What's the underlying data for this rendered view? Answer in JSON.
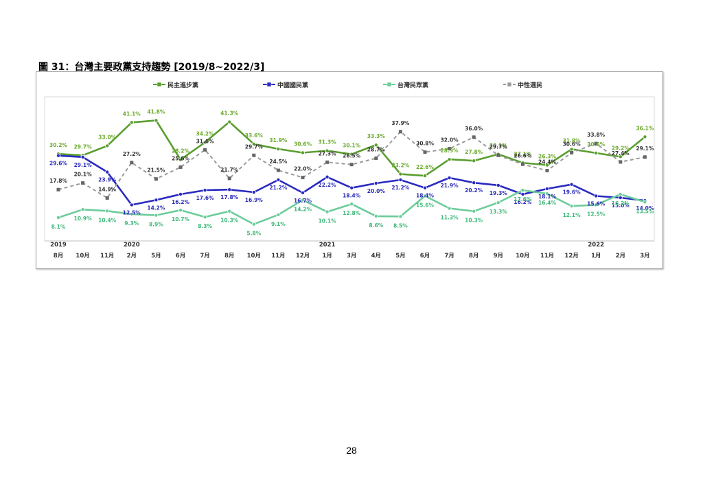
{
  "figure_title": "圖 31：台灣主要政黨支持趨勢 [2019/8~2022/3]",
  "page_number": "28",
  "chart_data": {
    "type": "line",
    "categories": [
      "8月",
      "10月",
      "11月",
      "2月",
      "5月",
      "6月",
      "7月",
      "8月",
      "10月",
      "11月",
      "12月",
      "1月",
      "3月",
      "4月",
      "5月",
      "6月",
      "7月",
      "8月",
      "9月",
      "10月",
      "11月",
      "12月",
      "1月",
      "2月",
      "3月"
    ],
    "year_labels": [
      {
        "index": 0,
        "label": "2019"
      },
      {
        "index": 3,
        "label": "2020"
      },
      {
        "index": 11,
        "label": "2021"
      },
      {
        "index": 22,
        "label": "2022"
      }
    ],
    "ylim": [
      0,
      50
    ],
    "value_suffix": "%",
    "legend_position": "top",
    "series": [
      {
        "name": "民主進步黨",
        "color": "#5a9e2f",
        "label_color": "#6aaa2a",
        "style": "solid",
        "values": [
          30.2,
          29.7,
          33.0,
          41.1,
          41.8,
          28.2,
          34.2,
          41.3,
          33.6,
          31.9,
          30.6,
          31.3,
          30.1,
          33.3,
          23.2,
          22.6,
          28.3,
          27.8,
          30.1,
          27.1,
          26.3,
          31.8,
          30.5,
          29.2,
          36.1
        ]
      },
      {
        "name": "中國國民黨",
        "color": "#2a2ac0",
        "label_color": "#2a2ab8",
        "style": "solid",
        "values": [
          29.6,
          29.1,
          23.9,
          12.5,
          14.2,
          16.2,
          17.6,
          17.8,
          16.9,
          21.2,
          16.7,
          22.2,
          18.4,
          20.0,
          21.2,
          18.4,
          21.9,
          20.2,
          19.3,
          16.2,
          18.1,
          19.6,
          15.6,
          15.0,
          14.0
        ]
      },
      {
        "name": "台灣民眾黨",
        "color": "#6ccc9a",
        "label_color": "#3db878",
        "style": "solid",
        "values": [
          8.1,
          10.9,
          10.4,
          9.3,
          8.9,
          10.7,
          8.3,
          10.3,
          5.8,
          9.1,
          14.2,
          10.1,
          12.8,
          8.6,
          8.5,
          15.6,
          11.3,
          10.3,
          13.3,
          17.6,
          16.4,
          12.1,
          12.5,
          16.2,
          13.5
        ]
      },
      {
        "name": "中性選民",
        "color": "#9a9a9a",
        "label_color": "#333333",
        "style": "dashed",
        "values": [
          17.8,
          20.1,
          14.9,
          27.2,
          21.5,
          25.6,
          31.6,
          21.7,
          29.7,
          24.5,
          22.0,
          27.3,
          26.5,
          28.7,
          37.9,
          30.8,
          32.0,
          36.0,
          29.7,
          26.6,
          24.4,
          30.6,
          33.8,
          27.4,
          29.1
        ]
      }
    ]
  }
}
